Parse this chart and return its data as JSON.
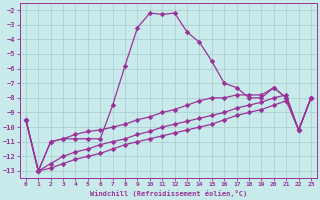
{
  "xlabel": "Windchill (Refroidissement éolien,°C)",
  "bg_color": "#c8eaea",
  "grid_color": "#a8cccc",
  "line_color": "#993399",
  "ylim": [
    -13.5,
    -1.5
  ],
  "xlim": [
    -0.5,
    23.5
  ],
  "yticks": [
    -2,
    -3,
    -4,
    -5,
    -6,
    -7,
    -8,
    -9,
    -10,
    -11,
    -12,
    -13
  ],
  "xticks": [
    0,
    1,
    2,
    3,
    4,
    5,
    6,
    7,
    8,
    9,
    10,
    11,
    12,
    13,
    14,
    15,
    16,
    17,
    18,
    19,
    20,
    21,
    22,
    23
  ],
  "series": [
    {
      "x": [
        0,
        1,
        2,
        3,
        4,
        5,
        6,
        7,
        8,
        9,
        10,
        11,
        12,
        13,
        14,
        15,
        16,
        17,
        18,
        19,
        20,
        21,
        22,
        23
      ],
      "y": [
        -9.5,
        -13.0,
        -11.0,
        -10.8,
        -10.8,
        -10.8,
        -10.8,
        -8.5,
        -5.8,
        -3.2,
        -2.2,
        -2.3,
        -2.2,
        -3.5,
        -4.2,
        -5.5,
        -7.0,
        -7.3,
        -8.0,
        -8.0,
        -7.3,
        -8.0,
        -10.2,
        -8.0
      ]
    },
    {
      "x": [
        0,
        1,
        2,
        3,
        4,
        5,
        6,
        7,
        8,
        9,
        10,
        11,
        12,
        13,
        14,
        15,
        16,
        17,
        18,
        19,
        20,
        21,
        22,
        23
      ],
      "y": [
        -9.5,
        -13.0,
        -12.8,
        -12.5,
        -12.2,
        -12.0,
        -11.8,
        -11.5,
        -11.2,
        -11.0,
        -10.8,
        -10.6,
        -10.4,
        -10.2,
        -10.0,
        -9.8,
        -9.5,
        -9.2,
        -9.0,
        -8.8,
        -8.5,
        -8.2,
        -10.2,
        -8.0
      ]
    },
    {
      "x": [
        0,
        1,
        2,
        3,
        4,
        5,
        6,
        7,
        8,
        9,
        10,
        11,
        12,
        13,
        14,
        15,
        16,
        17,
        18,
        19,
        20,
        21,
        22,
        23
      ],
      "y": [
        -9.5,
        -13.0,
        -12.5,
        -12.0,
        -11.7,
        -11.5,
        -11.2,
        -11.0,
        -10.8,
        -10.5,
        -10.3,
        -10.0,
        -9.8,
        -9.6,
        -9.4,
        -9.2,
        -9.0,
        -8.7,
        -8.5,
        -8.3,
        -8.0,
        -7.8,
        -10.2,
        -8.0
      ]
    },
    {
      "x": [
        0,
        1,
        2,
        3,
        4,
        5,
        6,
        7,
        8,
        9,
        10,
        11,
        12,
        13,
        14,
        15,
        16,
        17,
        18,
        19,
        20,
        21,
        22,
        23
      ],
      "y": [
        -9.5,
        -13.0,
        -11.0,
        -10.8,
        -10.5,
        -10.3,
        -10.2,
        -10.0,
        -9.8,
        -9.5,
        -9.3,
        -9.0,
        -8.8,
        -8.5,
        -8.2,
        -8.0,
        -8.0,
        -7.8,
        -7.8,
        -7.8,
        -7.3,
        -8.0,
        -10.2,
        -8.0
      ]
    }
  ]
}
